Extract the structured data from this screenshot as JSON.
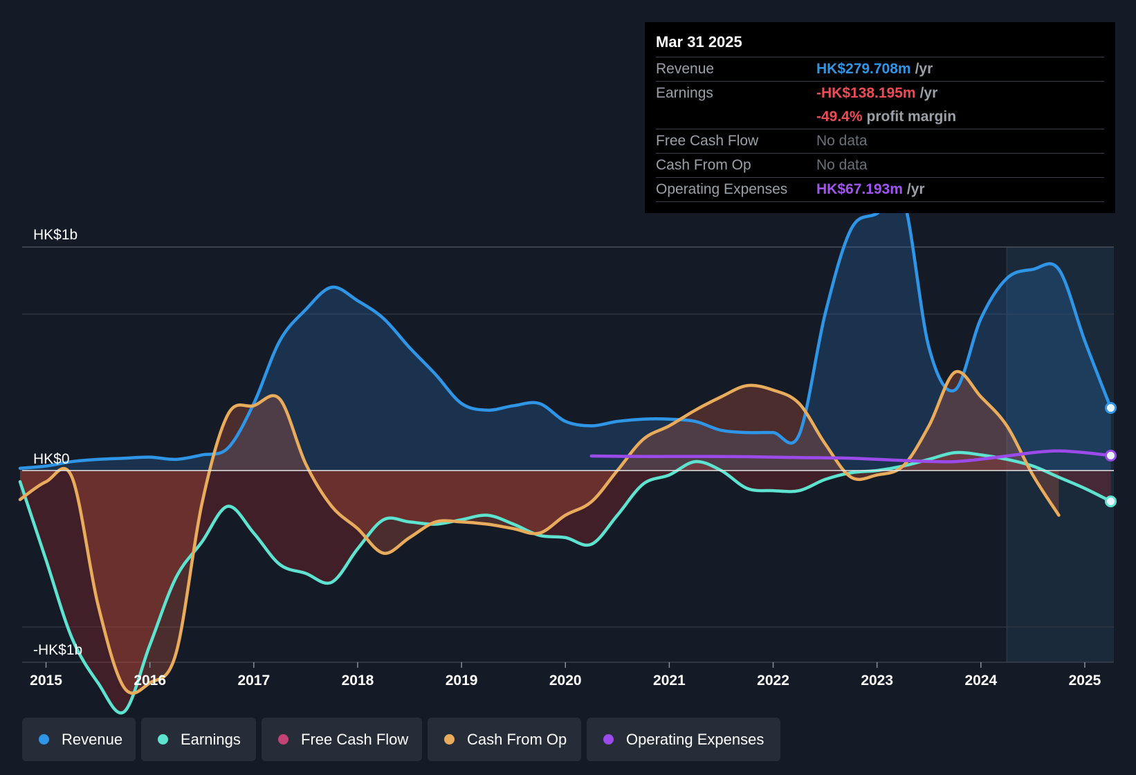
{
  "chart_data": {
    "type": "area",
    "y_axis_labels": {
      "top": "HK$1b",
      "zero": "HK$0",
      "bottom": "-HK$1b"
    },
    "ylim": [
      -1.2,
      1.4
    ],
    "x_ticks": [
      "2015",
      "2016",
      "2017",
      "2018",
      "2019",
      "2020",
      "2021",
      "2022",
      "2023",
      "2024",
      "2025"
    ],
    "xlim": [
      2014.77,
      2025.28
    ],
    "forecast_start": 2024.25,
    "grid": true,
    "series": [
      {
        "name": "Revenue",
        "color": "#2f95e6",
        "fill": true,
        "x": [
          2014.75,
          2015.0,
          2015.25,
          2015.5,
          2015.75,
          2016.0,
          2016.25,
          2016.5,
          2016.75,
          2017.0,
          2017.25,
          2017.5,
          2017.75,
          2018.0,
          2018.25,
          2018.5,
          2018.75,
          2019.0,
          2019.25,
          2019.5,
          2019.75,
          2020.0,
          2020.25,
          2020.5,
          2020.75,
          2021.0,
          2021.25,
          2021.5,
          2021.75,
          2022.0,
          2022.25,
          2022.5,
          2022.75,
          2023.0,
          2023.25,
          2023.5,
          2023.75,
          2024.0,
          2024.25,
          2024.5,
          2024.75,
          2025.0,
          2025.25
        ],
        "values": [
          0.01,
          0.02,
          0.04,
          0.05,
          0.055,
          0.06,
          0.05,
          0.07,
          0.1,
          0.3,
          0.58,
          0.72,
          0.82,
          0.76,
          0.68,
          0.55,
          0.43,
          0.3,
          0.27,
          0.29,
          0.3,
          0.22,
          0.2,
          0.22,
          0.23,
          0.23,
          0.22,
          0.18,
          0.17,
          0.17,
          0.16,
          0.7,
          1.08,
          1.15,
          1.22,
          0.55,
          0.36,
          0.68,
          0.86,
          0.9,
          0.9,
          0.58,
          0.28
        ]
      },
      {
        "name": "Earnings",
        "color": "#5de3cf",
        "fill": true,
        "x": [
          2014.75,
          2015.0,
          2015.25,
          2015.5,
          2015.75,
          2016.0,
          2016.25,
          2016.5,
          2016.75,
          2017.0,
          2017.25,
          2017.5,
          2017.75,
          2018.0,
          2018.25,
          2018.5,
          2018.75,
          2019.0,
          2019.25,
          2019.5,
          2019.75,
          2020.0,
          2020.25,
          2020.5,
          2020.75,
          2021.0,
          2021.25,
          2021.5,
          2021.75,
          2022.0,
          2022.25,
          2022.5,
          2022.75,
          2023.0,
          2023.25,
          2023.5,
          2023.75,
          2024.0,
          2024.25,
          2024.5,
          2024.75,
          2025.0,
          2025.25
        ],
        "values": [
          -0.05,
          -0.4,
          -0.75,
          -0.95,
          -1.08,
          -0.78,
          -0.48,
          -0.32,
          -0.16,
          -0.28,
          -0.42,
          -0.46,
          -0.5,
          -0.35,
          -0.22,
          -0.23,
          -0.24,
          -0.22,
          -0.2,
          -0.24,
          -0.29,
          -0.3,
          -0.33,
          -0.2,
          -0.06,
          -0.02,
          0.04,
          0.0,
          -0.08,
          -0.09,
          -0.09,
          -0.04,
          -0.01,
          0.0,
          0.02,
          0.05,
          0.08,
          0.07,
          0.05,
          0.02,
          -0.03,
          -0.08,
          -0.138
        ]
      },
      {
        "name": "Free Cash Flow",
        "color": "#c44275",
        "fill": true,
        "x": [],
        "values": []
      },
      {
        "name": "Cash From Op",
        "color": "#e8ac5c",
        "fill": true,
        "x": [
          2014.75,
          2015.0,
          2015.25,
          2015.5,
          2015.75,
          2016.0,
          2016.25,
          2016.5,
          2016.75,
          2017.0,
          2017.25,
          2017.5,
          2017.75,
          2018.0,
          2018.25,
          2018.5,
          2018.75,
          2019.0,
          2019.25,
          2019.5,
          2019.75,
          2020.0,
          2020.25,
          2020.5,
          2020.75,
          2021.0,
          2021.25,
          2021.5,
          2021.75,
          2022.0,
          2022.25,
          2022.5,
          2022.75,
          2023.0,
          2023.25,
          2023.5,
          2023.75,
          2024.0,
          2024.25,
          2024.5,
          2024.75
        ],
        "values": [
          -0.13,
          -0.05,
          -0.03,
          -0.6,
          -0.97,
          -0.95,
          -0.82,
          -0.15,
          0.25,
          0.29,
          0.32,
          0.03,
          -0.16,
          -0.26,
          -0.37,
          -0.3,
          -0.23,
          -0.23,
          -0.24,
          -0.26,
          -0.28,
          -0.2,
          -0.14,
          0.0,
          0.14,
          0.2,
          0.27,
          0.33,
          0.38,
          0.36,
          0.3,
          0.12,
          -0.03,
          -0.02,
          0.02,
          0.2,
          0.44,
          0.33,
          0.2,
          -0.02,
          -0.2
        ]
      },
      {
        "name": "Operating Expenses",
        "color": "#9b4bea",
        "fill": false,
        "x": [
          2020.25,
          2020.75,
          2021.25,
          2021.75,
          2022.25,
          2022.75,
          2023.25,
          2023.75,
          2024.25,
          2024.5,
          2024.75,
          2025.0,
          2025.25
        ],
        "values": [
          0.065,
          0.063,
          0.063,
          0.062,
          0.058,
          0.055,
          0.045,
          0.04,
          0.065,
          0.08,
          0.088,
          0.08,
          0.067
        ]
      }
    ]
  },
  "tooltip": {
    "date": "Mar 31 2025",
    "rows": [
      {
        "label": "Revenue",
        "value": "HK$279.708m",
        "unit": "/yr",
        "color": "#2f95e6"
      },
      {
        "label": "Earnings",
        "value": "-HK$138.195m",
        "unit": "/yr",
        "color": "#ee4c54"
      },
      {
        "label": "",
        "value": "-49.4%",
        "unit": "profit margin",
        "color": "#ee4c54"
      },
      {
        "label": "Free Cash Flow",
        "value": "No data",
        "unit": "",
        "color": "#6c7078"
      },
      {
        "label": "Cash From Op",
        "value": "No data",
        "unit": "",
        "color": "#6c7078"
      },
      {
        "label": "Operating Expenses",
        "value": "HK$67.193m",
        "unit": "/yr",
        "color": "#a155ee"
      }
    ]
  },
  "legend": [
    {
      "label": "Revenue",
      "color": "#2f95e6"
    },
    {
      "label": "Earnings",
      "color": "#5de3cf"
    },
    {
      "label": "Free Cash Flow",
      "color": "#c44275"
    },
    {
      "label": "Cash From Op",
      "color": "#e8ac5c"
    },
    {
      "label": "Operating Expenses",
      "color": "#9b4bea"
    }
  ]
}
